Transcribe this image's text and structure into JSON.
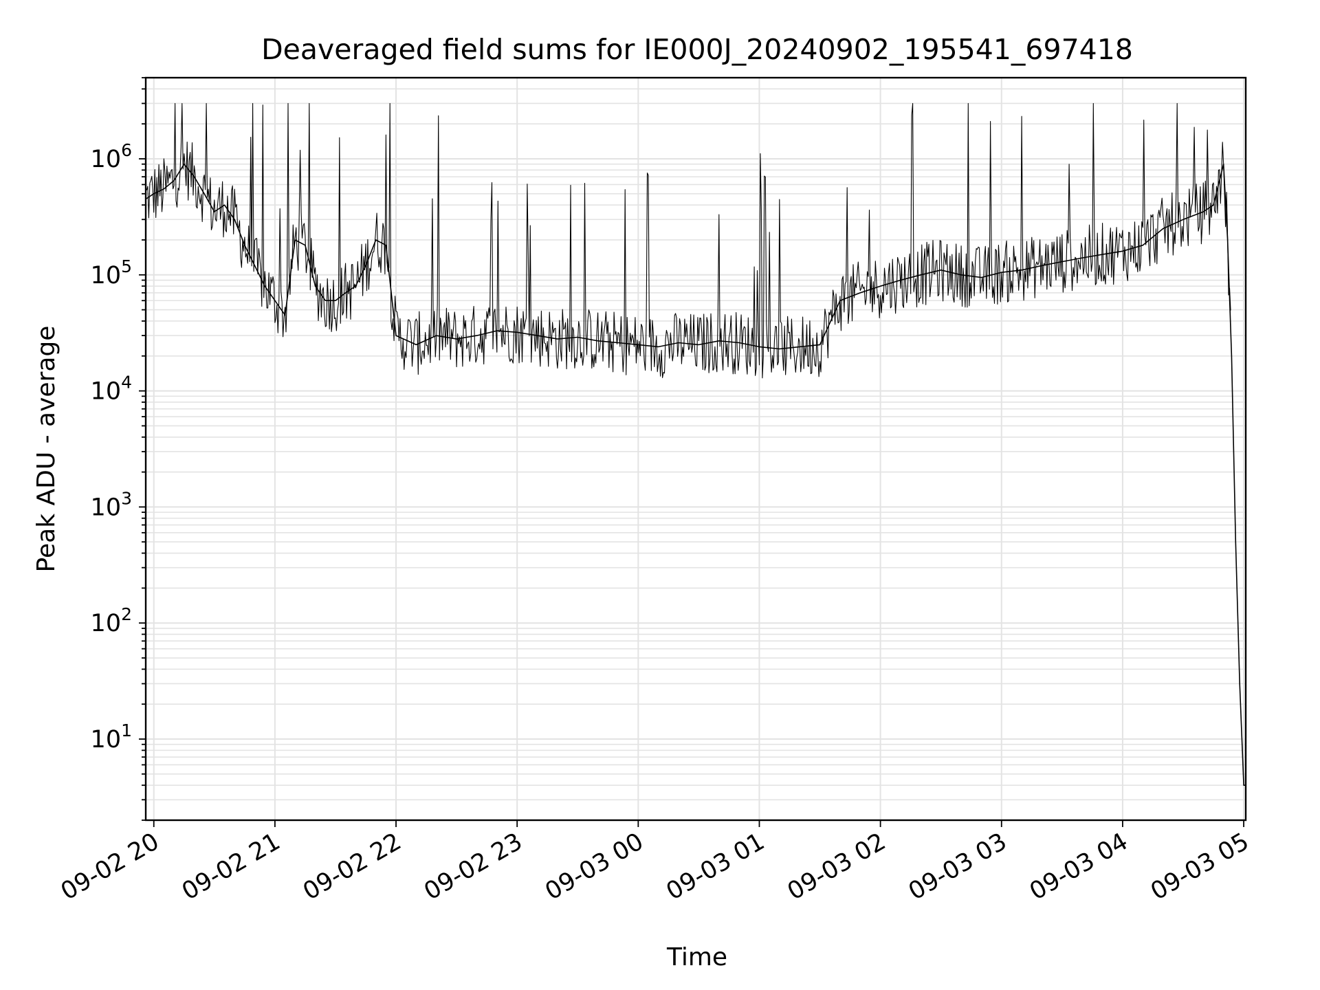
{
  "chart_data": {
    "type": "line",
    "title": "Deaveraged field sums for IE000J_20240902_195541_697418",
    "xlabel": "Time",
    "ylabel": "Peak ADU - average",
    "yscale": "log",
    "ylim": [
      2,
      5000000
    ],
    "xlim": [
      "09-02 19:56",
      "09-03 05:01"
    ],
    "grid": true,
    "line_color": "#000000",
    "grid_color": "#e3e3e3",
    "x_tick_labels": [
      "09-02 20",
      "09-02 21",
      "09-02 22",
      "09-02 23",
      "09-03 00",
      "09-03 01",
      "09-03 02",
      "09-03 03",
      "09-03 04",
      "09-03 05"
    ],
    "y_tick_labels": [
      {
        "base": "10",
        "exp": "1",
        "value": 10
      },
      {
        "base": "10",
        "exp": "2",
        "value": 100
      },
      {
        "base": "10",
        "exp": "3",
        "value": 1000
      },
      {
        "base": "10",
        "exp": "4",
        "value": 10000
      },
      {
        "base": "10",
        "exp": "5",
        "value": 100000
      },
      {
        "base": "10",
        "exp": "6",
        "value": 1000000
      }
    ],
    "series": [
      {
        "x": [
          "09-02 19:56",
          "09-02 20:00",
          "09-02 20:05",
          "09-02 20:10",
          "09-02 20:15",
          "09-02 20:20",
          "09-02 20:25",
          "09-02 20:30",
          "09-02 20:35",
          "09-02 20:40",
          "09-02 20:45",
          "09-02 20:50",
          "09-02 20:55",
          "09-02 21:00",
          "09-02 21:05",
          "09-02 21:10",
          "09-02 21:15",
          "09-02 21:20",
          "09-02 21:25",
          "09-02 21:30",
          "09-02 21:35",
          "09-02 21:40",
          "09-02 21:45",
          "09-02 21:50",
          "09-02 21:55",
          "09-02 22:00",
          "09-02 22:10",
          "09-02 22:20",
          "09-02 22:30",
          "09-02 22:40",
          "09-02 22:50",
          "09-02 23:00",
          "09-02 23:10",
          "09-02 23:20",
          "09-02 23:30",
          "09-02 23:40",
          "09-02 23:50",
          "09-03 00:00",
          "09-03 00:10",
          "09-03 00:20",
          "09-03 00:30",
          "09-03 00:40",
          "09-03 00:50",
          "09-03 01:00",
          "09-03 01:10",
          "09-03 01:20",
          "09-03 01:30",
          "09-03 01:40",
          "09-03 01:50",
          "09-03 02:00",
          "09-03 02:10",
          "09-03 02:20",
          "09-03 02:30",
          "09-03 02:40",
          "09-03 02:50",
          "09-03 03:00",
          "09-03 03:10",
          "09-03 03:20",
          "09-03 03:30",
          "09-03 03:40",
          "09-03 03:50",
          "09-03 04:00",
          "09-03 04:10",
          "09-03 04:20",
          "09-03 04:30",
          "09-03 04:40",
          "09-03 04:45",
          "09-03 04:50",
          "09-03 04:52",
          "09-03 04:54",
          "09-03 04:56",
          "09-03 04:58",
          "09-03 05:00",
          "09-03 05:01"
        ],
        "values": [
          450000,
          500000,
          550000,
          650000,
          900000,
          700000,
          500000,
          350000,
          400000,
          300000,
          180000,
          120000,
          80000,
          60000,
          45000,
          200000,
          180000,
          80000,
          60000,
          60000,
          70000,
          80000,
          120000,
          200000,
          180000,
          30000,
          25000,
          30000,
          28000,
          30000,
          33000,
          32000,
          30000,
          28000,
          29000,
          27000,
          26000,
          25000,
          24000,
          26000,
          25000,
          27000,
          26000,
          24000,
          23000,
          24000,
          25000,
          60000,
          70000,
          80000,
          90000,
          100000,
          110000,
          100000,
          95000,
          105000,
          110000,
          120000,
          130000,
          140000,
          150000,
          160000,
          180000,
          250000,
          300000,
          350000,
          400000,
          900000,
          200000,
          20000,
          500,
          30,
          4,
          4
        ]
      }
    ]
  }
}
